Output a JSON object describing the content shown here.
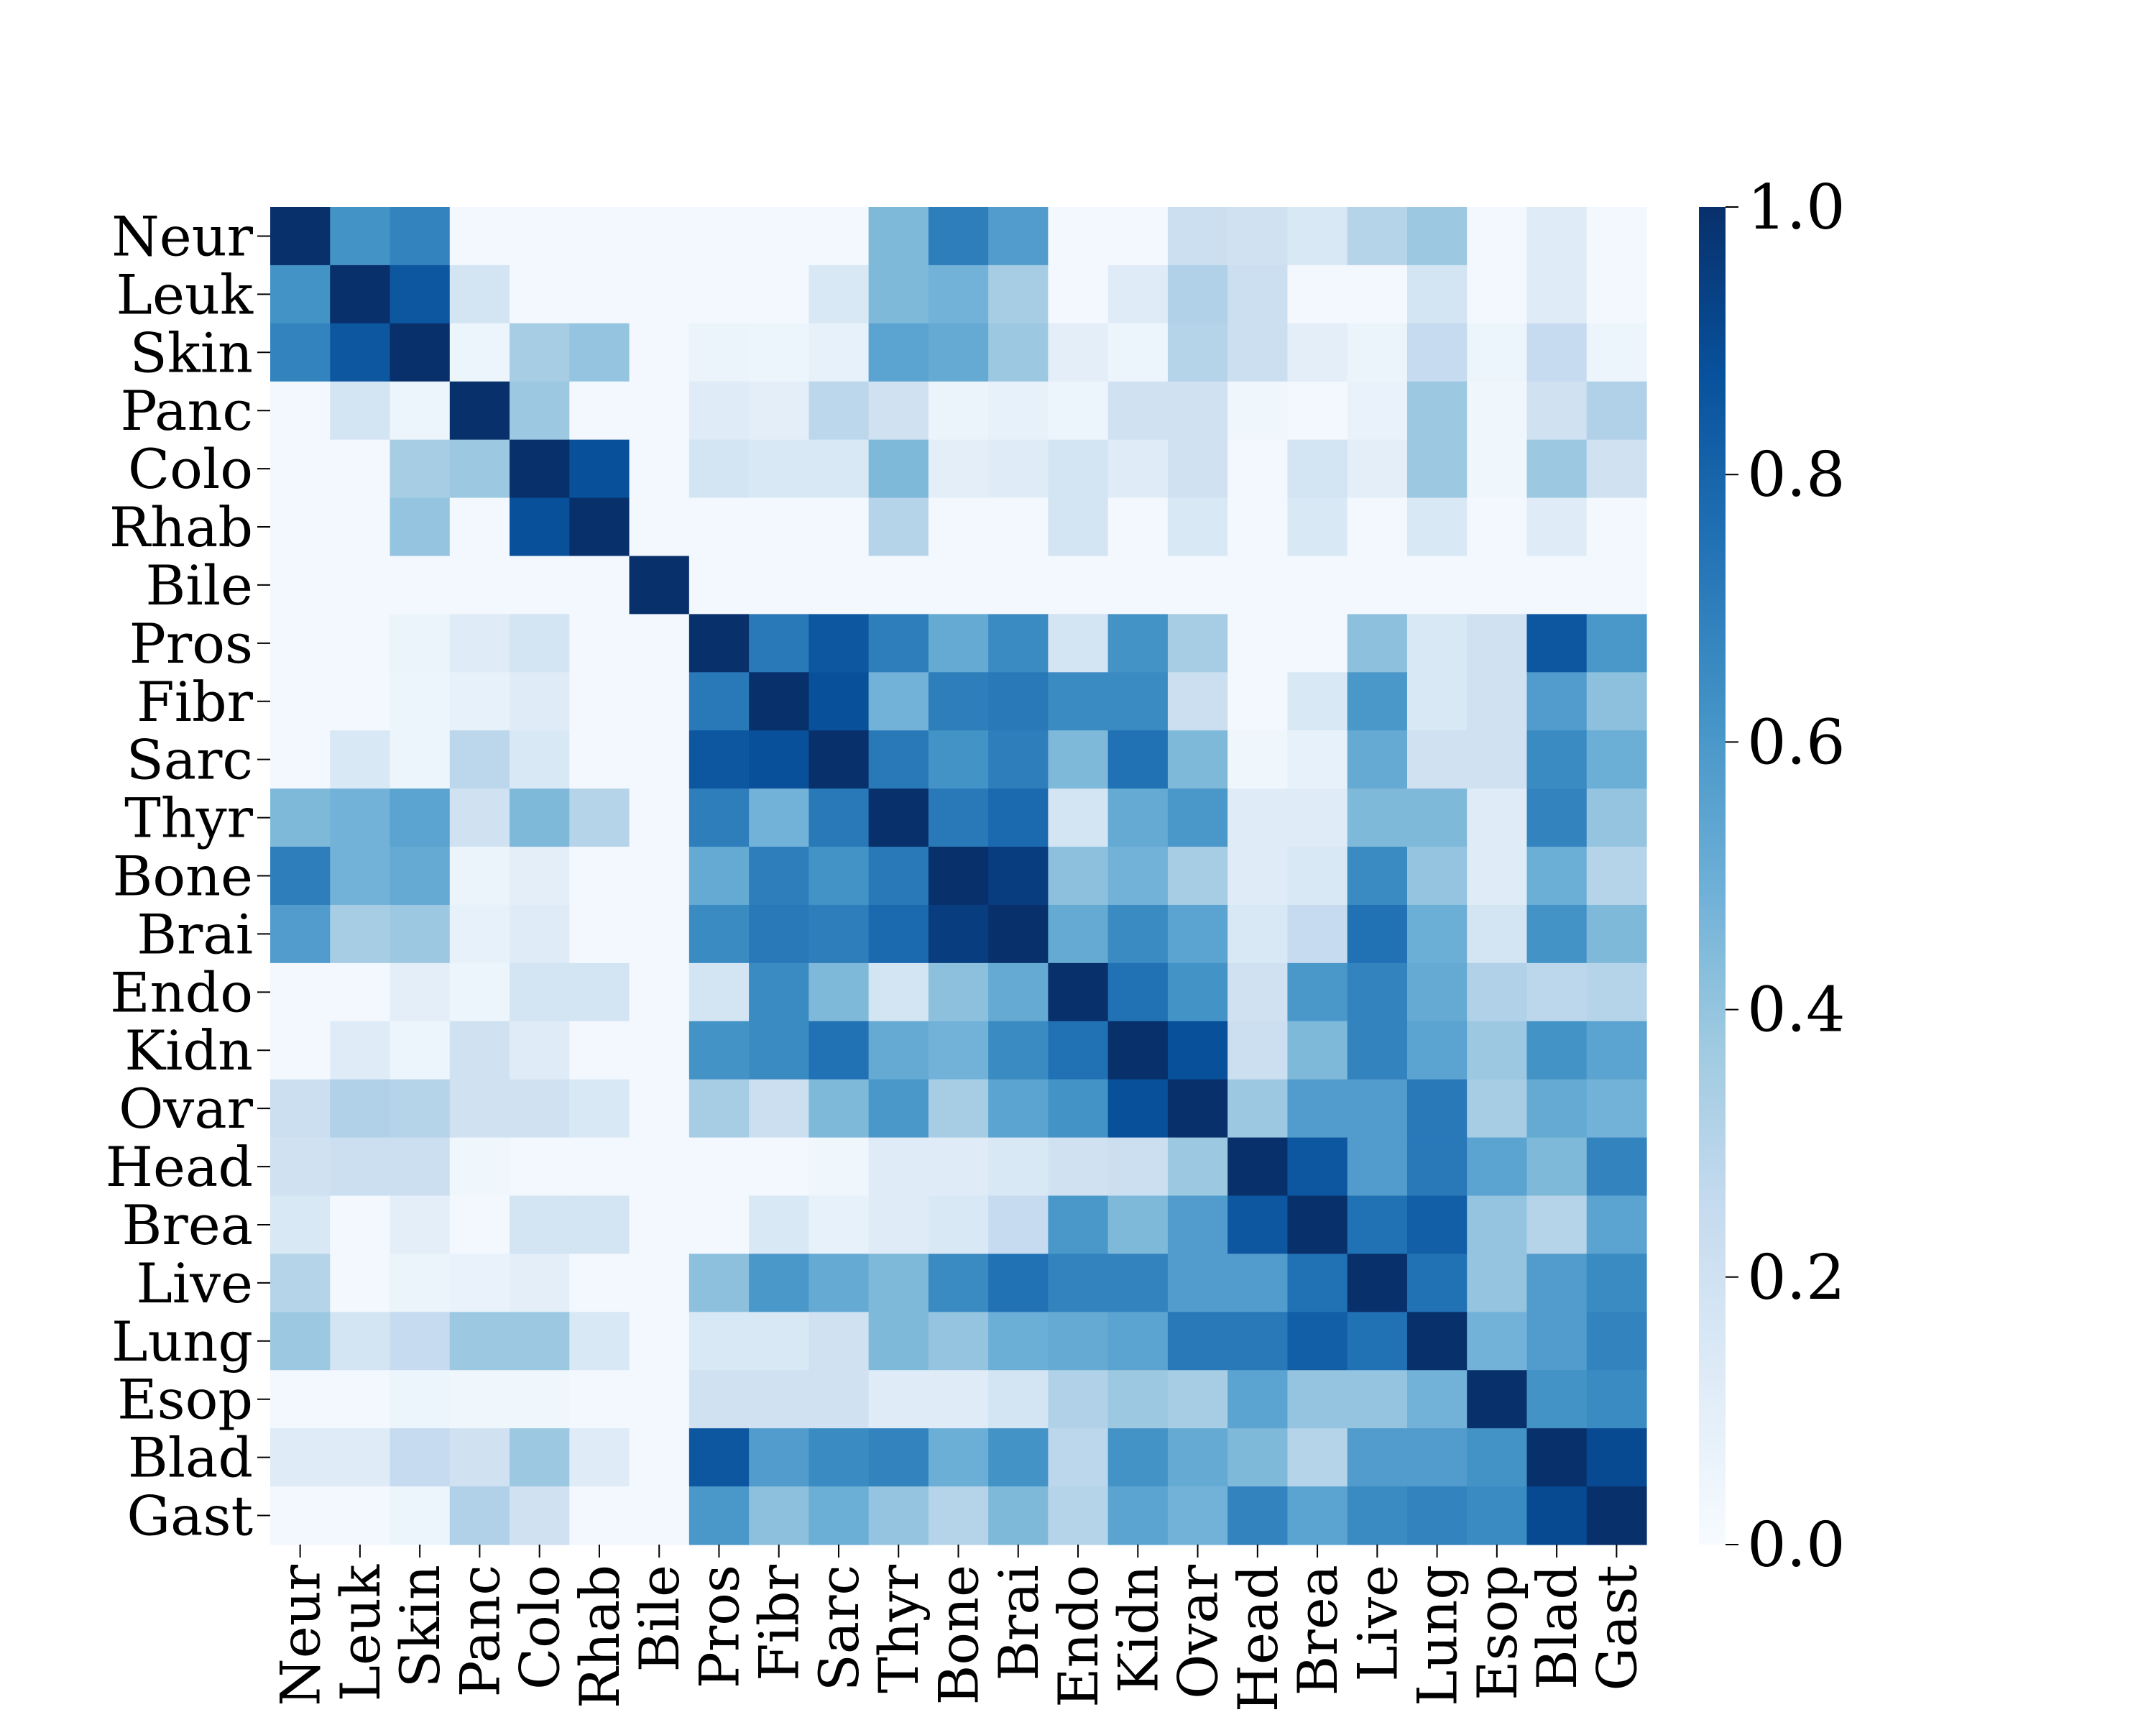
{
  "chart_data": {
    "type": "heatmap",
    "title": "",
    "xlabel": "",
    "ylabel": "",
    "labels": [
      "Neur",
      "Leuk",
      "Skin",
      "Panc",
      "Colo",
      "Rhab",
      "Bile",
      "Pros",
      "Fibr",
      "Sarc",
      "Thyr",
      "Bone",
      "Brai",
      "Endo",
      "Kidn",
      "Ovar",
      "Head",
      "Brea",
      "Live",
      "Lung",
      "Esop",
      "Blad",
      "Gast"
    ],
    "values": [
      [
        1.0,
        0.62,
        0.68,
        0.02,
        0.02,
        0.02,
        0.02,
        0.02,
        0.02,
        0.02,
        0.45,
        0.7,
        0.58,
        0.02,
        0.02,
        0.22,
        0.2,
        0.15,
        0.3,
        0.38,
        0.02,
        0.12,
        0.02
      ],
      [
        0.62,
        1.0,
        0.85,
        0.18,
        0.02,
        0.02,
        0.02,
        0.02,
        0.02,
        0.15,
        0.45,
        0.48,
        0.35,
        0.02,
        0.12,
        0.32,
        0.22,
        0.02,
        0.02,
        0.18,
        0.02,
        0.12,
        0.02
      ],
      [
        0.68,
        0.85,
        1.0,
        0.05,
        0.35,
        0.4,
        0.02,
        0.06,
        0.05,
        0.08,
        0.55,
        0.52,
        0.38,
        0.1,
        0.05,
        0.3,
        0.22,
        0.1,
        0.06,
        0.25,
        0.05,
        0.25,
        0.05
      ],
      [
        0.02,
        0.18,
        0.05,
        1.0,
        0.38,
        0.02,
        0.02,
        0.12,
        0.1,
        0.28,
        0.2,
        0.06,
        0.08,
        0.05,
        0.2,
        0.2,
        0.04,
        0.02,
        0.07,
        0.38,
        0.04,
        0.2,
        0.32
      ],
      [
        0.02,
        0.02,
        0.35,
        0.38,
        1.0,
        0.88,
        0.02,
        0.18,
        0.15,
        0.15,
        0.45,
        0.1,
        0.12,
        0.18,
        0.12,
        0.2,
        0.02,
        0.18,
        0.1,
        0.38,
        0.04,
        0.38,
        0.2
      ],
      [
        0.02,
        0.02,
        0.4,
        0.02,
        0.88,
        1.0,
        0.02,
        0.02,
        0.02,
        0.02,
        0.3,
        0.02,
        0.02,
        0.18,
        0.02,
        0.15,
        0.02,
        0.15,
        0.02,
        0.15,
        0.02,
        0.12,
        0.02
      ],
      [
        0.02,
        0.02,
        0.02,
        0.02,
        0.02,
        0.02,
        1.0,
        0.02,
        0.02,
        0.02,
        0.02,
        0.02,
        0.02,
        0.02,
        0.02,
        0.02,
        0.02,
        0.02,
        0.02,
        0.02,
        0.02,
        0.02,
        0.02
      ],
      [
        0.02,
        0.02,
        0.06,
        0.12,
        0.18,
        0.02,
        0.02,
        1.0,
        0.72,
        0.85,
        0.7,
        0.52,
        0.65,
        0.18,
        0.62,
        0.35,
        0.02,
        0.02,
        0.42,
        0.15,
        0.2,
        0.85,
        0.6
      ],
      [
        0.02,
        0.02,
        0.05,
        0.08,
        0.12,
        0.02,
        0.02,
        0.72,
        1.0,
        0.88,
        0.48,
        0.7,
        0.72,
        0.65,
        0.65,
        0.22,
        0.02,
        0.15,
        0.6,
        0.15,
        0.2,
        0.58,
        0.42
      ],
      [
        0.02,
        0.15,
        0.05,
        0.28,
        0.15,
        0.02,
        0.02,
        0.85,
        0.88,
        1.0,
        0.72,
        0.62,
        0.7,
        0.45,
        0.75,
        0.45,
        0.04,
        0.08,
        0.52,
        0.2,
        0.2,
        0.65,
        0.5
      ],
      [
        0.45,
        0.48,
        0.55,
        0.2,
        0.45,
        0.3,
        0.02,
        0.7,
        0.48,
        0.72,
        1.0,
        0.72,
        0.78,
        0.18,
        0.52,
        0.6,
        0.12,
        0.12,
        0.45,
        0.45,
        0.12,
        0.68,
        0.4
      ],
      [
        0.7,
        0.48,
        0.52,
        0.06,
        0.1,
        0.02,
        0.02,
        0.52,
        0.7,
        0.62,
        0.72,
        1.0,
        0.95,
        0.42,
        0.48,
        0.35,
        0.12,
        0.15,
        0.65,
        0.4,
        0.12,
        0.5,
        0.3
      ],
      [
        0.58,
        0.35,
        0.38,
        0.08,
        0.12,
        0.02,
        0.02,
        0.65,
        0.72,
        0.7,
        0.78,
        0.95,
        1.0,
        0.52,
        0.65,
        0.55,
        0.15,
        0.25,
        0.75,
        0.5,
        0.18,
        0.62,
        0.45
      ],
      [
        0.02,
        0.02,
        0.1,
        0.05,
        0.18,
        0.18,
        0.02,
        0.18,
        0.65,
        0.45,
        0.18,
        0.42,
        0.52,
        1.0,
        0.75,
        0.62,
        0.2,
        0.6,
        0.68,
        0.52,
        0.32,
        0.28,
        0.3
      ],
      [
        0.02,
        0.12,
        0.05,
        0.2,
        0.12,
        0.02,
        0.02,
        0.62,
        0.65,
        0.75,
        0.52,
        0.48,
        0.65,
        0.75,
        1.0,
        0.88,
        0.22,
        0.45,
        0.68,
        0.55,
        0.38,
        0.62,
        0.55
      ],
      [
        0.22,
        0.32,
        0.3,
        0.2,
        0.2,
        0.15,
        0.02,
        0.35,
        0.22,
        0.45,
        0.6,
        0.35,
        0.55,
        0.62,
        0.88,
        1.0,
        0.38,
        0.58,
        0.58,
        0.72,
        0.35,
        0.52,
        0.48
      ],
      [
        0.2,
        0.22,
        0.22,
        0.04,
        0.02,
        0.02,
        0.02,
        0.02,
        0.02,
        0.04,
        0.12,
        0.12,
        0.15,
        0.2,
        0.22,
        0.38,
        1.0,
        0.85,
        0.58,
        0.72,
        0.55,
        0.45,
        0.68
      ],
      [
        0.15,
        0.02,
        0.1,
        0.02,
        0.18,
        0.18,
        0.02,
        0.02,
        0.15,
        0.08,
        0.12,
        0.15,
        0.25,
        0.6,
        0.45,
        0.58,
        0.85,
        1.0,
        0.75,
        0.82,
        0.4,
        0.3,
        0.55
      ],
      [
        0.3,
        0.02,
        0.06,
        0.07,
        0.1,
        0.02,
        0.02,
        0.42,
        0.6,
        0.52,
        0.45,
        0.65,
        0.75,
        0.68,
        0.68,
        0.58,
        0.58,
        0.75,
        1.0,
        0.75,
        0.4,
        0.58,
        0.65
      ],
      [
        0.38,
        0.18,
        0.25,
        0.38,
        0.38,
        0.15,
        0.02,
        0.15,
        0.15,
        0.2,
        0.45,
        0.4,
        0.5,
        0.52,
        0.55,
        0.72,
        0.72,
        0.82,
        0.75,
        1.0,
        0.48,
        0.58,
        0.68
      ],
      [
        0.02,
        0.02,
        0.05,
        0.04,
        0.04,
        0.02,
        0.02,
        0.2,
        0.2,
        0.2,
        0.12,
        0.12,
        0.18,
        0.32,
        0.38,
        0.35,
        0.55,
        0.4,
        0.4,
        0.48,
        1.0,
        0.62,
        0.65
      ],
      [
        0.12,
        0.12,
        0.25,
        0.2,
        0.38,
        0.12,
        0.02,
        0.85,
        0.58,
        0.65,
        0.68,
        0.5,
        0.62,
        0.28,
        0.62,
        0.52,
        0.45,
        0.3,
        0.58,
        0.58,
        0.62,
        1.0,
        0.9
      ],
      [
        0.02,
        0.02,
        0.05,
        0.32,
        0.2,
        0.02,
        0.02,
        0.6,
        0.42,
        0.5,
        0.4,
        0.3,
        0.45,
        0.3,
        0.55,
        0.48,
        0.68,
        0.55,
        0.65,
        0.68,
        0.65,
        0.9,
        1.0
      ]
    ],
    "colormap": "Blues",
    "colorbar": {
      "min": 0.0,
      "max": 1.0,
      "ticks": [
        "0.0",
        "0.2",
        "0.4",
        "0.6",
        "0.8",
        "1.0"
      ]
    },
    "colors": {
      "low": "#f7fbff",
      "high": "#08306b"
    }
  }
}
